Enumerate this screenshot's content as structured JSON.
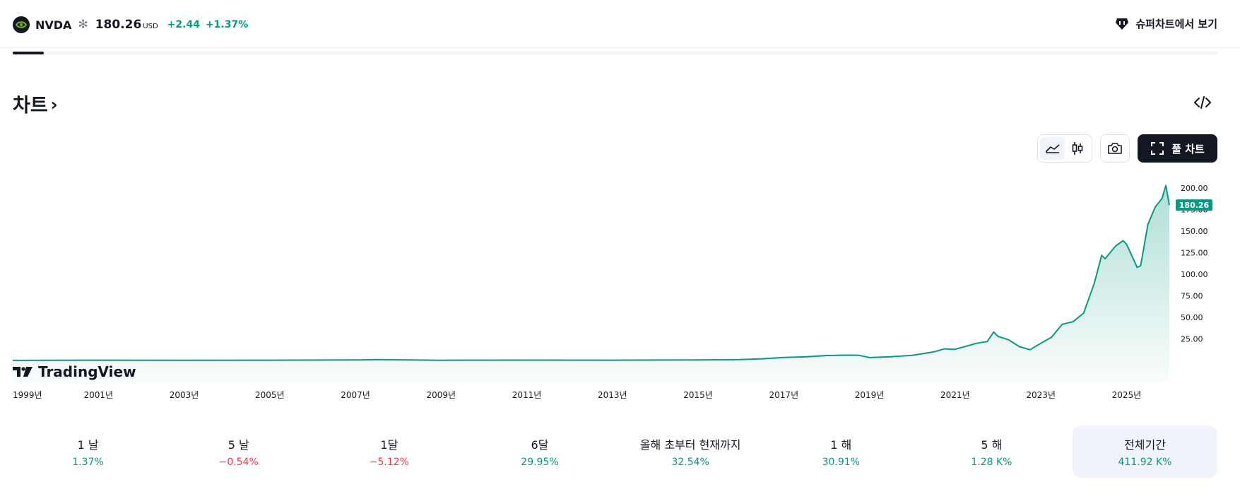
{
  "header": {
    "symbol": "NVDA",
    "star": "✻",
    "price": "180.26",
    "currency": "USD",
    "change": "+2.44",
    "change_pct": "+1.37%",
    "super_chart_label": "슈퍼차트에서 보기"
  },
  "section": {
    "title": "차트",
    "chevron": "›"
  },
  "toolbar": {
    "full_chart_label": "풀 차트"
  },
  "icons": [
    "stock-logo-icon",
    "supercharts-icon",
    "embed-code-icon",
    "area-chart-icon",
    "candles-icon",
    "camera-icon",
    "fullscreen-icon",
    "tradingview-logo-icon"
  ],
  "colors": {
    "up": "#089981",
    "down": "#f23645",
    "line": "#089981",
    "accent_dark": "#131722"
  },
  "branding": {
    "tradingview": "TradingView"
  },
  "chart_data": {
    "type": "area",
    "series": [
      {
        "name": "NVDA",
        "x": [
          1999.0,
          2001.0,
          2003.0,
          2005.0,
          2007.0,
          2007.5,
          2009.0,
          2011.0,
          2013.0,
          2015.0,
          2016.0,
          2016.5,
          2017.0,
          2017.5,
          2018.0,
          2018.5,
          2018.75,
          2019.0,
          2019.5,
          2020.0,
          2020.5,
          2020.75,
          2021.0,
          2021.5,
          2021.75,
          2021.9,
          2022.0,
          2022.25,
          2022.5,
          2022.75,
          2022.83,
          2023.0,
          2023.25,
          2023.5,
          2023.75,
          2024.0,
          2024.25,
          2024.42,
          2024.5,
          2024.75,
          2024.92,
          2025.0,
          2025.25,
          2025.33,
          2025.5,
          2025.67,
          2025.83,
          2025.92,
          2026.0
        ],
        "values": [
          0.1,
          0.4,
          0.3,
          0.4,
          0.6,
          1.0,
          0.3,
          0.5,
          0.4,
          0.6,
          1.0,
          2.0,
          3.5,
          4.2,
          5.8,
          6.2,
          6.0,
          3.4,
          4.4,
          6.0,
          10.0,
          13.5,
          13.0,
          20.0,
          22.0,
          33.0,
          28.0,
          24.0,
          16.0,
          12.5,
          15.0,
          20.0,
          27.0,
          42.0,
          45.0,
          55.0,
          90.0,
          122.0,
          118.0,
          133.0,
          139.0,
          135.0,
          108.0,
          110.0,
          158.0,
          178.0,
          188.0,
          203.0,
          180.26
        ]
      }
    ],
    "x_ticks": [
      "1999년",
      "2001년",
      "2003년",
      "2005년",
      "2007년",
      "2009년",
      "2011년",
      "2013년",
      "2015년",
      "2017년",
      "2019년",
      "2021년",
      "2023년",
      "2025년"
    ],
    "y_ticks": [
      "200.00",
      "175.00",
      "150.00",
      "125.00",
      "100.00",
      "75.00",
      "50.00",
      "25.00"
    ],
    "ylim": [
      -27,
      205
    ],
    "xlim": [
      1999.0,
      2026.0
    ],
    "last_price_label": "180.26",
    "grid": false
  },
  "periods": [
    {
      "label": "1 날",
      "value": "1.37%",
      "dir": "pos"
    },
    {
      "label": "5 날",
      "value": "−0.54%",
      "dir": "neg"
    },
    {
      "label": "1달",
      "value": "−5.12%",
      "dir": "neg"
    },
    {
      "label": "6달",
      "value": "29.95%",
      "dir": "pos"
    },
    {
      "label": "올해 초부터 현재까지",
      "value": "32.54%",
      "dir": "pos"
    },
    {
      "label": "1 해",
      "value": "30.91%",
      "dir": "pos"
    },
    {
      "label": "5 해",
      "value": "1.28 K%",
      "dir": "pos"
    },
    {
      "label": "전체기간",
      "value": "411.92 K%",
      "dir": "pos"
    }
  ]
}
